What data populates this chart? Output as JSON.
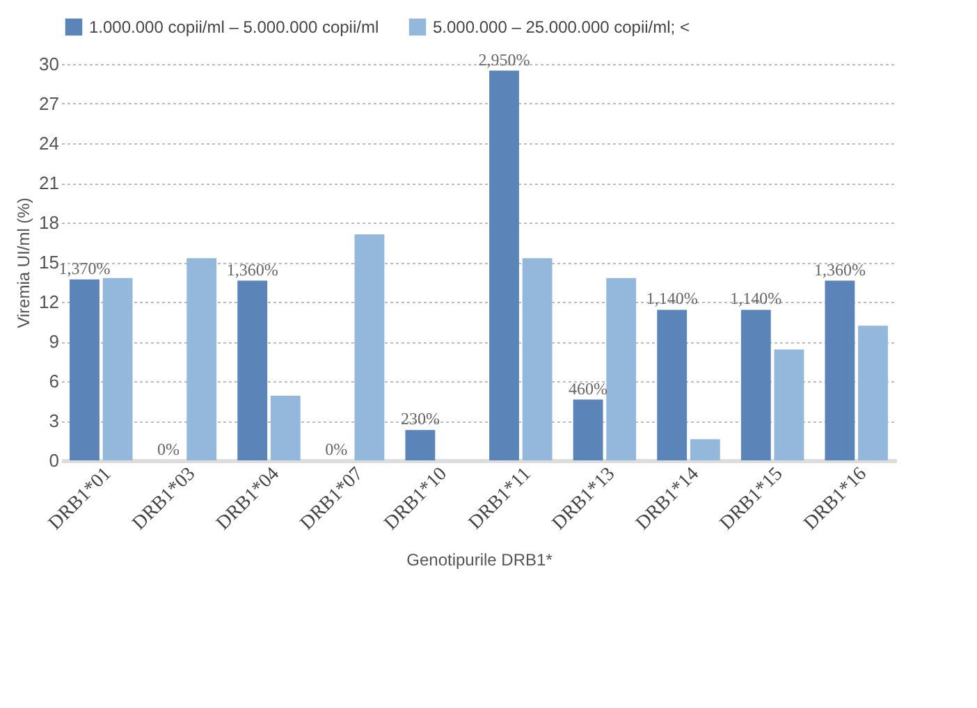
{
  "chart_data": {
    "type": "bar",
    "xlabel": "Genotipurile DRB1*",
    "ylabel": "Viremia UI/ml  (%)",
    "categories": [
      "DRB1*01",
      "DRB1*03",
      "DRB1*04",
      "DRB1*07",
      "DRB1*10",
      "DRB1*11",
      "DRB1*13",
      "DRB1*14",
      "DRB1*15",
      "DRB1*16"
    ],
    "series": [
      {
        "name": "1.000.000 copii/ml – 5.000.000 copii/ml",
        "color": "#5b84b8",
        "values": [
          13.7,
          0,
          13.6,
          0,
          2.3,
          29.5,
          4.6,
          11.4,
          11.4,
          13.6
        ],
        "value_labels": [
          "1,370%",
          "0%",
          "1,360%",
          "0%",
          "230%",
          "2,950%",
          "460%",
          "1,140%",
          "1,140%",
          "1,360%"
        ]
      },
      {
        "name": "5.000.000 – 25.000.000 copii/ml; <",
        "color": "#93b8db",
        "values": [
          13.8,
          15.3,
          4.9,
          17.1,
          null,
          15.3,
          13.8,
          1.6,
          8.4,
          10.2
        ]
      }
    ],
    "ylim": [
      0,
      30
    ],
    "yticks": [
      0,
      3,
      6,
      9,
      12,
      15,
      18,
      21,
      24,
      27,
      30
    ],
    "grid": "y",
    "legend": "top"
  }
}
